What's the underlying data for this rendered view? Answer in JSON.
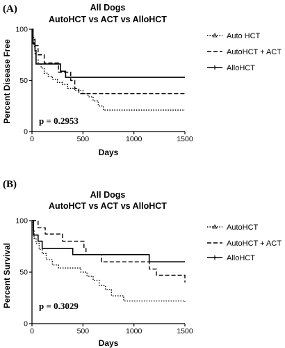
{
  "chart_data": [
    {
      "type": "line",
      "panel_label": "(A)",
      "title": "All Dogs",
      "subtitle": "AutoHCT vs ACT vs AlloHCT",
      "xlabel": "Days",
      "ylabel": "Percent Disease Free",
      "xlim": [
        0,
        1500
      ],
      "ylim": [
        0,
        100
      ],
      "xticks": [
        0,
        500,
        1000,
        1500
      ],
      "yticks": [
        0,
        50,
        100
      ],
      "annotation": "p = 0.2953",
      "legend_position": "top-right",
      "series": [
        {
          "name": "Auto HCT",
          "dash": "dotted",
          "x": [
            0,
            10,
            20,
            30,
            40,
            60,
            90,
            120,
            160,
            200,
            250,
            300,
            350,
            420,
            500,
            550,
            600,
            650,
            700,
            1500
          ],
          "y": [
            100,
            90,
            83,
            76,
            70,
            66,
            62,
            57,
            54,
            51,
            48,
            46,
            42,
            40,
            37,
            34,
            30,
            25,
            21,
            21
          ]
        },
        {
          "name": "AutoHCT + ACT",
          "dash": "dashed",
          "x": [
            0,
            10,
            30,
            60,
            120,
            230,
            260,
            330,
            380,
            420,
            460,
            700,
            1500
          ],
          "y": [
            100,
            92,
            84,
            75,
            67,
            67,
            58,
            58,
            50,
            42,
            37,
            37,
            37
          ]
        },
        {
          "name": "AlloHCT",
          "dash": "solid",
          "x": [
            0,
            10,
            30,
            40,
            90,
            280,
            330,
            1500
          ],
          "y": [
            100,
            86,
            79,
            66,
            66,
            59,
            53,
            53
          ]
        }
      ]
    },
    {
      "type": "line",
      "panel_label": "(B)",
      "title": "All Dogs",
      "subtitle": "AutoHCT vs ACT vs AlloHCT",
      "xlabel": "Days",
      "ylabel": "Percent Survival",
      "xlim": [
        0,
        1500
      ],
      "ylim": [
        0,
        100
      ],
      "xticks": [
        0,
        500,
        1000,
        1500
      ],
      "yticks": [
        0,
        50,
        100
      ],
      "annotation": "p = 0.3029",
      "legend_position": "top-right",
      "series": [
        {
          "name": "AutoHCT",
          "dash": "dotted",
          "x": [
            0,
            10,
            20,
            40,
            70,
            100,
            140,
            200,
            260,
            300,
            480,
            540,
            600,
            660,
            720,
            780,
            900,
            1500
          ],
          "y": [
            100,
            90,
            83,
            78,
            72,
            68,
            62,
            57,
            54,
            54,
            50,
            46,
            42,
            37,
            33,
            27,
            22,
            21
          ]
        },
        {
          "name": "AutoHCT + ACT",
          "dash": "dashed",
          "x": [
            0,
            60,
            130,
            300,
            510,
            530,
            680,
            1150,
            1220,
            1500
          ],
          "y": [
            100,
            93,
            87,
            80,
            74,
            67,
            60,
            53,
            47,
            40
          ]
        },
        {
          "name": "AlloHCT",
          "dash": "solid",
          "x": [
            0,
            15,
            60,
            100,
            200,
            400,
            1100,
            1150,
            1500
          ],
          "y": [
            100,
            86,
            80,
            73,
            73,
            67,
            67,
            60,
            60
          ]
        }
      ]
    }
  ]
}
